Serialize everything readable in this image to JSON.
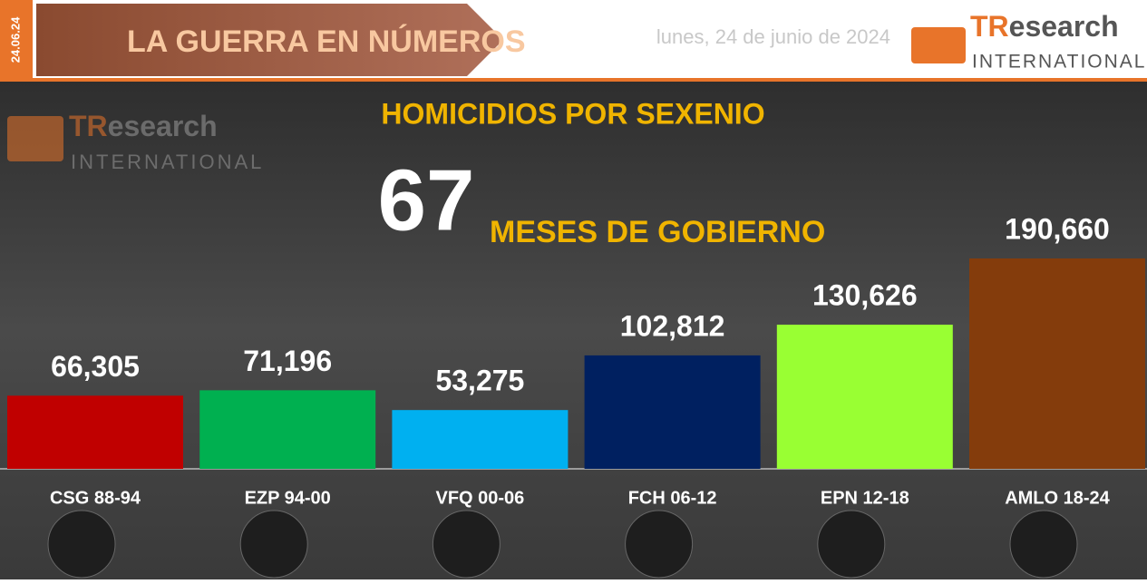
{
  "header": {
    "date_tag": "24.06.24",
    "banner": "LA GUERRA EN NÚMEROS",
    "date": "lunes, 24 de junio de 2024",
    "logo": {
      "tr": "TR",
      "rest": "esearch",
      "sub": "INTERNATIONAL"
    }
  },
  "chart_data": {
    "type": "bar",
    "title": "HOMICIDIOS POR SEXENIO",
    "months": 67,
    "subtitle": "MESES DE GOBIERNO",
    "categories": [
      "CSG 88-94",
      "EZP 94-00",
      "VFQ 00-06",
      "FCH 06-12",
      "EPN 12-18",
      "AMLO 18-24"
    ],
    "values": [
      66305,
      71196,
      53275,
      102812,
      130626,
      190660
    ],
    "value_labels": [
      "66,305",
      "71,196",
      "53,275",
      "102,812",
      "130,626",
      "190,660"
    ],
    "colors": [
      "#c00000",
      "#00b050",
      "#00b0f0",
      "#002060",
      "#99ff33",
      "#843c0c"
    ]
  }
}
